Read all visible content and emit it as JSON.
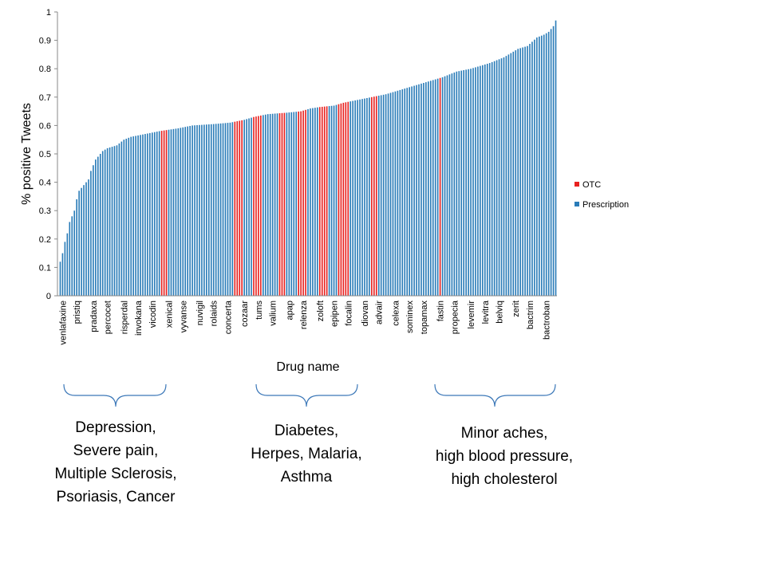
{
  "chart_data": {
    "type": "bar",
    "xlabel": "Drug name",
    "ylabel": "% positive Tweets",
    "ylim": [
      0,
      1
    ],
    "yticks": [
      "0",
      "0.1",
      "0.2",
      "0.3",
      "0.4",
      "0.5",
      "0.6",
      "0.7",
      "0.8",
      "0.9",
      "1"
    ],
    "grid": false,
    "legend_position": "right",
    "series": [
      {
        "name": "OTC",
        "color": "#e8211f"
      },
      {
        "name": "Prescription",
        "color": "#2a7cb8"
      }
    ],
    "tick_labels": [
      "venlafaxine",
      "pristiq",
      "pradaxa",
      "percocet",
      "risperdal",
      "invokana",
      "vicodin",
      "xenical",
      "vyvanse",
      "nuvigil",
      "rolaids",
      "concerta",
      "cozaar",
      "tums",
      "valium",
      "apap",
      "relenza",
      "zoloft",
      "epipen",
      "focalin",
      "diovan",
      "advair",
      "celexa",
      "sominex",
      "topamax",
      "fastin",
      "propecia",
      "levemir",
      "levitra",
      "belviq",
      "zerit",
      "bactrim",
      "bactroban"
    ],
    "bar_count": 211,
    "values_profile": [
      [
        0,
        0.12
      ],
      [
        1,
        0.15
      ],
      [
        2,
        0.19
      ],
      [
        3,
        0.22
      ],
      [
        4,
        0.26
      ],
      [
        5,
        0.28
      ],
      [
        6,
        0.3
      ],
      [
        7,
        0.34
      ],
      [
        8,
        0.37
      ],
      [
        9,
        0.38
      ],
      [
        10,
        0.39
      ],
      [
        11,
        0.4
      ],
      [
        12,
        0.41
      ],
      [
        13,
        0.44
      ],
      [
        14,
        0.46
      ],
      [
        15,
        0.48
      ],
      [
        16,
        0.49
      ],
      [
        17,
        0.5
      ],
      [
        18,
        0.51
      ],
      [
        20,
        0.52
      ],
      [
        24,
        0.53
      ],
      [
        27,
        0.55
      ],
      [
        30,
        0.56
      ],
      [
        36,
        0.57
      ],
      [
        42,
        0.58
      ],
      [
        50,
        0.59
      ],
      [
        56,
        0.6
      ],
      [
        65,
        0.605
      ],
      [
        72,
        0.61
      ],
      [
        78,
        0.62
      ],
      [
        82,
        0.63
      ],
      [
        88,
        0.64
      ],
      [
        96,
        0.645
      ],
      [
        102,
        0.65
      ],
      [
        106,
        0.66
      ],
      [
        110,
        0.665
      ],
      [
        116,
        0.67
      ],
      [
        120,
        0.68
      ],
      [
        126,
        0.69
      ],
      [
        132,
        0.7
      ],
      [
        138,
        0.71
      ],
      [
        144,
        0.725
      ],
      [
        150,
        0.74
      ],
      [
        156,
        0.755
      ],
      [
        162,
        0.77
      ],
      [
        168,
        0.79
      ],
      [
        174,
        0.8
      ],
      [
        182,
        0.82
      ],
      [
        188,
        0.84
      ],
      [
        194,
        0.87
      ],
      [
        198,
        0.88
      ],
      [
        202,
        0.91
      ],
      [
        205,
        0.92
      ],
      [
        207,
        0.93
      ],
      [
        209,
        0.95
      ],
      [
        210,
        0.97
      ]
    ],
    "otc_indices": [
      43,
      44,
      45,
      74,
      75,
      76,
      77,
      82,
      83,
      84,
      85,
      93,
      94,
      95,
      101,
      102,
      103,
      104,
      110,
      111,
      112,
      113,
      118,
      119,
      120,
      121,
      122,
      132,
      133,
      134,
      161
    ]
  },
  "legend": [
    {
      "label": "OTC",
      "color": "#e8211f"
    },
    {
      "label": "Prescription",
      "color": "#2a7cb8"
    }
  ],
  "groups": [
    {
      "lines": [
        "Depression,",
        "Severe pain,",
        "Multiple Sclerosis,",
        "Psoriasis, Cancer"
      ]
    },
    {
      "lines": [
        "Diabetes,",
        "Herpes, Malaria,",
        "Asthma"
      ]
    },
    {
      "lines": [
        "Minor aches,",
        "high blood pressure,",
        "high cholesterol"
      ]
    }
  ]
}
